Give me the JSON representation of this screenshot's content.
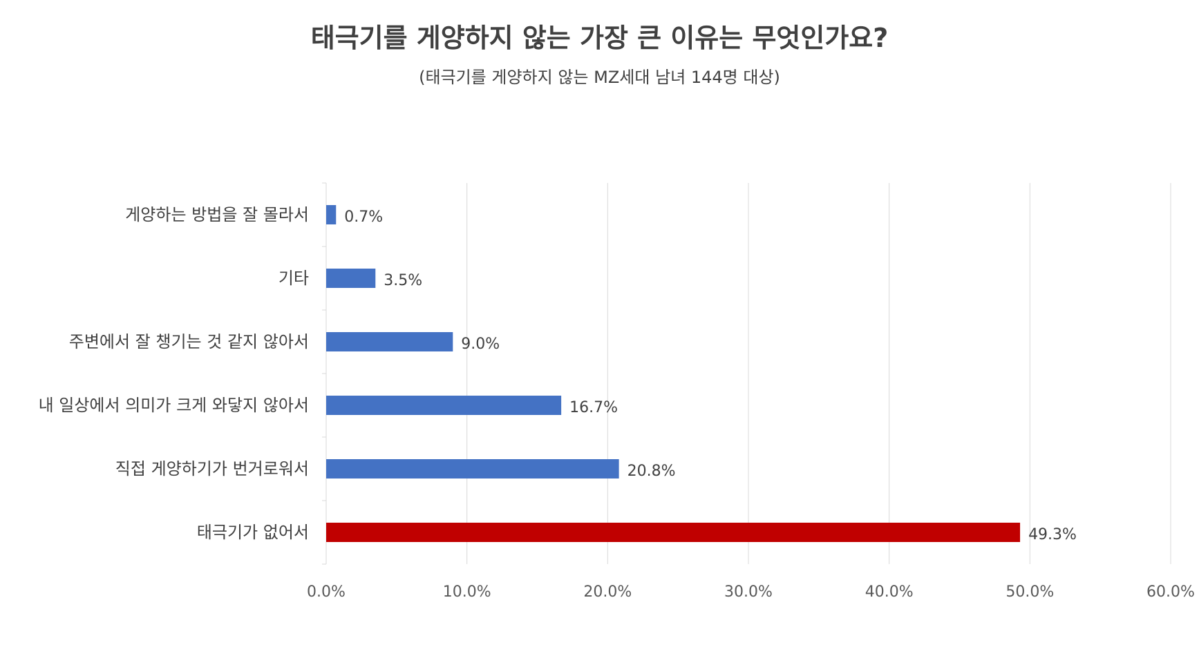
{
  "chart_data": {
    "type": "bar",
    "orientation": "horizontal",
    "title": "태극기를 게양하지 않는 가장 큰 이유는 무엇인가요?",
    "subtitle": "(태극기를 게양하지 않는 MZ세대 남녀 144명 대상)",
    "categories": [
      "게양하는 방법을 잘 몰라서",
      "기타",
      "주변에서 잘 챙기는 것 같지 않아서",
      "내 일상에서 의미가 크게 와닿지 않아서",
      "직접 게양하기가 번거로워서",
      "태극기가 없어서"
    ],
    "values": [
      0.7,
      3.5,
      9.0,
      16.7,
      20.8,
      49.3
    ],
    "value_labels": [
      "0.7%",
      "3.5%",
      "9.0%",
      "16.7%",
      "20.8%",
      "49.3%"
    ],
    "bar_colors": [
      "#4472C4",
      "#4472C4",
      "#4472C4",
      "#4472C4",
      "#4472C4",
      "#C00000"
    ],
    "xlim": [
      0,
      60
    ],
    "xticks": [
      0,
      10,
      20,
      30,
      40,
      50,
      60
    ],
    "xtick_labels": [
      "0.0%",
      "10.0%",
      "20.0%",
      "30.0%",
      "40.0%",
      "50.0%",
      "60.0%"
    ],
    "grid": true,
    "legend": "none",
    "colors": {
      "gridline": "#D9D9D9",
      "axis": "#D9D9D9",
      "text": "#404040",
      "ticks": "#595959"
    }
  }
}
